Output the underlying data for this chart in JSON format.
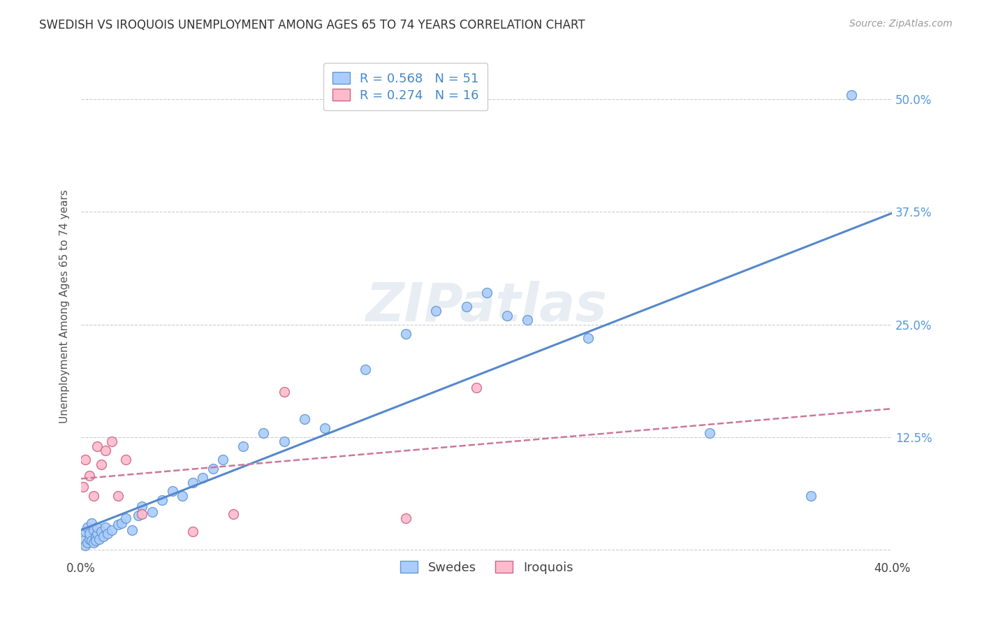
{
  "title": "SWEDISH VS IROQUOIS UNEMPLOYMENT AMONG AGES 65 TO 74 YEARS CORRELATION CHART",
  "source": "Source: ZipAtlas.com",
  "ylabel": "Unemployment Among Ages 65 to 74 years",
  "xlim": [
    0.0,
    0.4
  ],
  "ylim": [
    -0.01,
    0.55
  ],
  "xticks": [
    0.0,
    0.1,
    0.2,
    0.3,
    0.4
  ],
  "xticklabels": [
    "0.0%",
    "",
    "",
    "",
    "40.0%"
  ],
  "ytick_positions": [
    0.0,
    0.125,
    0.25,
    0.375,
    0.5
  ],
  "ytick_right_labels": [
    "",
    "12.5%",
    "25.0%",
    "37.5%",
    "50.0%"
  ],
  "blue_scatter_color": "#aaccff",
  "blue_edge_color": "#6699cc",
  "pink_scatter_color": "#ffbbcc",
  "pink_edge_color": "#cc6688",
  "blue_line_color": "#5588cc",
  "pink_line_color": "#cc7799",
  "swedes_x": [
    0.001,
    0.002,
    0.002,
    0.003,
    0.003,
    0.004,
    0.004,
    0.005,
    0.005,
    0.006,
    0.006,
    0.007,
    0.007,
    0.008,
    0.008,
    0.009,
    0.01,
    0.011,
    0.012,
    0.013,
    0.015,
    0.018,
    0.02,
    0.022,
    0.025,
    0.028,
    0.03,
    0.035,
    0.04,
    0.045,
    0.05,
    0.055,
    0.06,
    0.065,
    0.07,
    0.08,
    0.09,
    0.1,
    0.11,
    0.12,
    0.14,
    0.16,
    0.175,
    0.19,
    0.2,
    0.21,
    0.22,
    0.25,
    0.31,
    0.36,
    0.38
  ],
  "swedes_y": [
    0.01,
    0.005,
    0.02,
    0.008,
    0.025,
    0.012,
    0.018,
    0.01,
    0.03,
    0.008,
    0.022,
    0.015,
    0.01,
    0.018,
    0.025,
    0.012,
    0.02,
    0.015,
    0.025,
    0.018,
    0.022,
    0.028,
    0.03,
    0.035,
    0.022,
    0.038,
    0.048,
    0.042,
    0.055,
    0.065,
    0.06,
    0.075,
    0.08,
    0.09,
    0.1,
    0.115,
    0.13,
    0.12,
    0.145,
    0.135,
    0.2,
    0.24,
    0.265,
    0.27,
    0.285,
    0.26,
    0.255,
    0.235,
    0.13,
    0.06,
    0.505
  ],
  "iroquois_x": [
    0.001,
    0.002,
    0.004,
    0.006,
    0.008,
    0.01,
    0.012,
    0.015,
    0.018,
    0.022,
    0.03,
    0.055,
    0.075,
    0.1,
    0.16,
    0.195
  ],
  "iroquois_y": [
    0.07,
    0.1,
    0.082,
    0.06,
    0.115,
    0.095,
    0.11,
    0.12,
    0.06,
    0.1,
    0.04,
    0.02,
    0.04,
    0.175,
    0.035,
    0.18
  ],
  "swedes_R": 0.568,
  "swedes_N": 51,
  "iroquois_R": 0.274,
  "iroquois_N": 16,
  "legend_label_swedes": "Swedes",
  "legend_label_iroquois": "Iroquois",
  "watermark": "ZIPatlas",
  "bg_color": "#ffffff",
  "grid_color": "#cccccc",
  "title_color": "#333333",
  "source_color": "#999999",
  "right_tick_color": "#5599dd",
  "legend_text_color": "#4488cc"
}
